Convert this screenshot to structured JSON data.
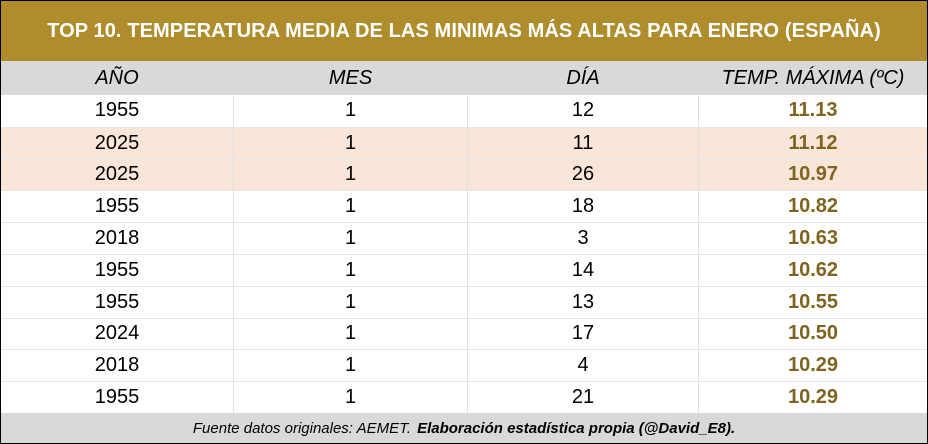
{
  "title": "TOP 10. TEMPERATURA MEDIA DE LAS MINIMAS MÁS ALTAS PARA ENERO (ESPAÑA)",
  "columns": [
    "AÑO",
    "MES",
    "DÍA",
    "TEMP. MÁXIMA (ºC)"
  ],
  "rows": [
    {
      "year": "1955",
      "month": "1",
      "day": "12",
      "temp": "11.13",
      "highlight": false
    },
    {
      "year": "2025",
      "month": "1",
      "day": "11",
      "temp": "11.12",
      "highlight": true
    },
    {
      "year": "2025",
      "month": "1",
      "day": "26",
      "temp": "10.97",
      "highlight": true
    },
    {
      "year": "1955",
      "month": "1",
      "day": "18",
      "temp": "10.82",
      "highlight": false
    },
    {
      "year": "2018",
      "month": "1",
      "day": "3",
      "temp": "10.63",
      "highlight": false
    },
    {
      "year": "1955",
      "month": "1",
      "day": "14",
      "temp": "10.62",
      "highlight": false
    },
    {
      "year": "1955",
      "month": "1",
      "day": "13",
      "temp": "10.55",
      "highlight": false
    },
    {
      "year": "2024",
      "month": "1",
      "day": "17",
      "temp": "10.50",
      "highlight": false
    },
    {
      "year": "2018",
      "month": "1",
      "day": "4",
      "temp": "10.29",
      "highlight": false
    },
    {
      "year": "1955",
      "month": "1",
      "day": "21",
      "temp": "10.29",
      "highlight": false
    }
  ],
  "footer": {
    "source": "Fuente datos originales: AEMET.",
    "credit": "Elaboración estadística propia (@David_E8)."
  },
  "colors": {
    "title_bg": "#b08d2c",
    "header_bg": "#d9d9d9",
    "highlight_bg": "#fae6d9",
    "value_text": "#7f6420"
  }
}
